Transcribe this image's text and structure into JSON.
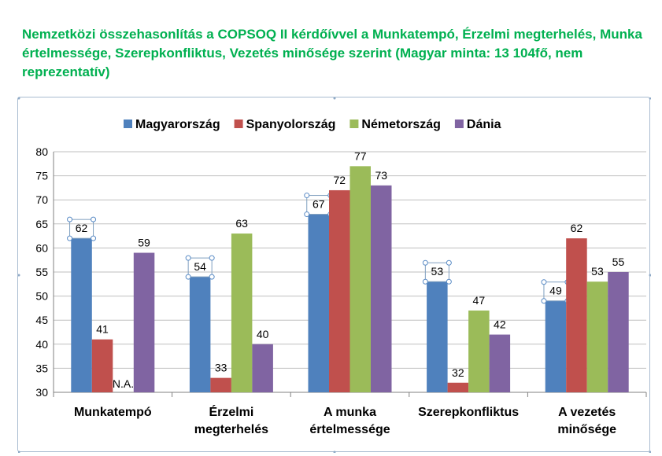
{
  "page": {
    "title": "Nemzetközi összehasonlítás a COPSOQ II kérdőívvel a Munkatempó, Érzelmi megterhelés, Munka értelmessége, Szerepkonfliktus, Vezetés minősége szerint (Magyar minta: 13 104fő, nem reprezentatív)",
    "title_color": "#00b050"
  },
  "chart_data": {
    "type": "bar",
    "title": "",
    "xlabel": "",
    "ylabel": "",
    "ylim": [
      30,
      80
    ],
    "yticks": [
      30,
      35,
      40,
      45,
      50,
      55,
      60,
      65,
      70,
      75,
      80
    ],
    "grid": true,
    "legend_position": "top",
    "categories": [
      [
        "Munkatempó"
      ],
      [
        "Érzelmi",
        "megterhelés"
      ],
      [
        "A munka",
        "értelmessége"
      ],
      [
        "Szerepkonfliktus"
      ],
      [
        "A vezetés",
        "minősége"
      ]
    ],
    "series": [
      {
        "name": "Magyarország",
        "color": "#4f81bd",
        "values": [
          62,
          54,
          67,
          53,
          49
        ]
      },
      {
        "name": "Spanyolország",
        "color": "#c0504d",
        "values": [
          41,
          33,
          72,
          32,
          62
        ]
      },
      {
        "name": "Németország",
        "color": "#9bbb59",
        "values": [
          null,
          63,
          77,
          47,
          53
        ]
      },
      {
        "name": "Dánia",
        "color": "#8064a2",
        "values": [
          59,
          40,
          73,
          42,
          55
        ]
      }
    ],
    "missing_label": "N.A."
  }
}
